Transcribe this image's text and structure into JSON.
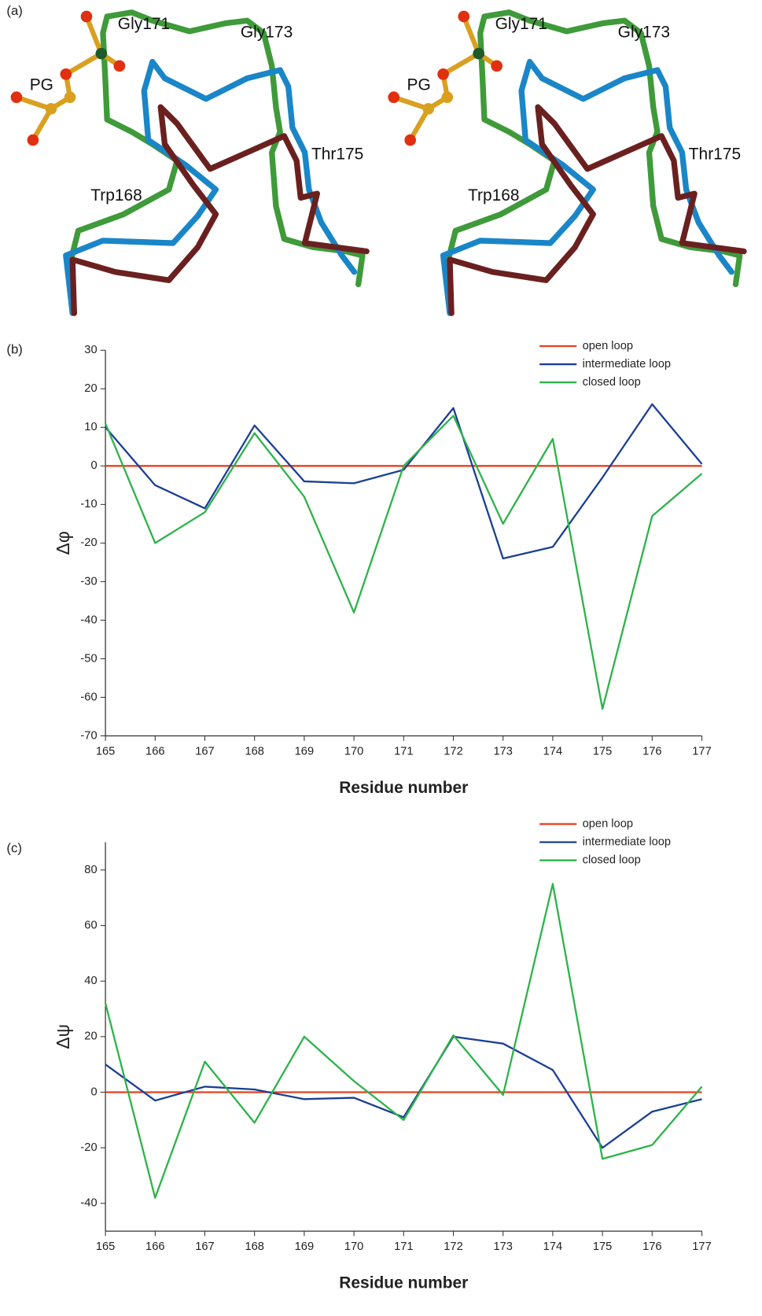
{
  "panel_a": {
    "label": "(a)",
    "views": [
      {
        "labels": [
          "Gly171",
          "Gly173",
          "PG",
          "Thr175",
          "Trp168"
        ]
      },
      {
        "labels": [
          "Gly171",
          "Gly173",
          "PG",
          "Thr175",
          "Trp168"
        ]
      }
    ]
  },
  "chart_data": [
    {
      "type": "line",
      "panel_label": "(b)",
      "x_label": "Residue number",
      "y_label": "Δφ",
      "x": [
        165,
        166,
        167,
        168,
        169,
        170,
        171,
        172,
        173,
        174,
        175,
        176,
        177
      ],
      "series": [
        {
          "name": "open loop",
          "color": "#e8401c",
          "values": [
            0,
            0,
            0,
            0,
            0,
            0,
            0,
            0,
            0,
            0,
            0,
            0,
            0
          ]
        },
        {
          "name": "intermediate loop",
          "color": "#1c3f94",
          "values": [
            10,
            -5,
            -11,
            10.5,
            -4,
            -4.5,
            -1,
            15,
            -24,
            -21,
            -3,
            16,
            0.5
          ]
        },
        {
          "name": "closed loop",
          "color": "#2db34a",
          "values": [
            11,
            -20,
            -12,
            8.5,
            -8,
            -38,
            0,
            13,
            -15,
            7,
            -63,
            -13,
            -2
          ]
        }
      ],
      "xlim": [
        165,
        177
      ],
      "ylim": [
        -70,
        30
      ],
      "xticks": [
        165,
        166,
        167,
        168,
        169,
        170,
        171,
        172,
        173,
        174,
        175,
        176,
        177
      ],
      "yticks": [
        -70,
        -60,
        -50,
        -40,
        -30,
        -20,
        -10,
        0,
        10,
        20,
        30
      ],
      "legend": "upper right"
    },
    {
      "type": "line",
      "panel_label": "(c)",
      "x_label": "Residue number",
      "y_label": "Δψ",
      "x": [
        165,
        166,
        167,
        168,
        169,
        170,
        171,
        172,
        173,
        174,
        175,
        176,
        177
      ],
      "series": [
        {
          "name": "open loop",
          "color": "#e8401c",
          "values": [
            0,
            0,
            0,
            0,
            0,
            0,
            0,
            0,
            0,
            0,
            0,
            0,
            0
          ]
        },
        {
          "name": "intermediate loop",
          "color": "#1c3f94",
          "values": [
            10,
            -3,
            2,
            1,
            -2.5,
            -2,
            -9,
            20,
            17.5,
            8,
            -20,
            -7,
            -2.5
          ]
        },
        {
          "name": "closed loop",
          "color": "#2db34a",
          "values": [
            32,
            -38,
            11,
            -11,
            20,
            4,
            -10,
            20.5,
            -1,
            75,
            -24,
            -19,
            2
          ]
        }
      ],
      "xlim": [
        165,
        177
      ],
      "ylim": [
        -50,
        90
      ],
      "xticks": [
        165,
        166,
        167,
        168,
        169,
        170,
        171,
        172,
        173,
        174,
        175,
        176,
        177
      ],
      "yticks": [
        -40,
        -20,
        0,
        20,
        40,
        60,
        80
      ],
      "legend": "upper right"
    }
  ]
}
